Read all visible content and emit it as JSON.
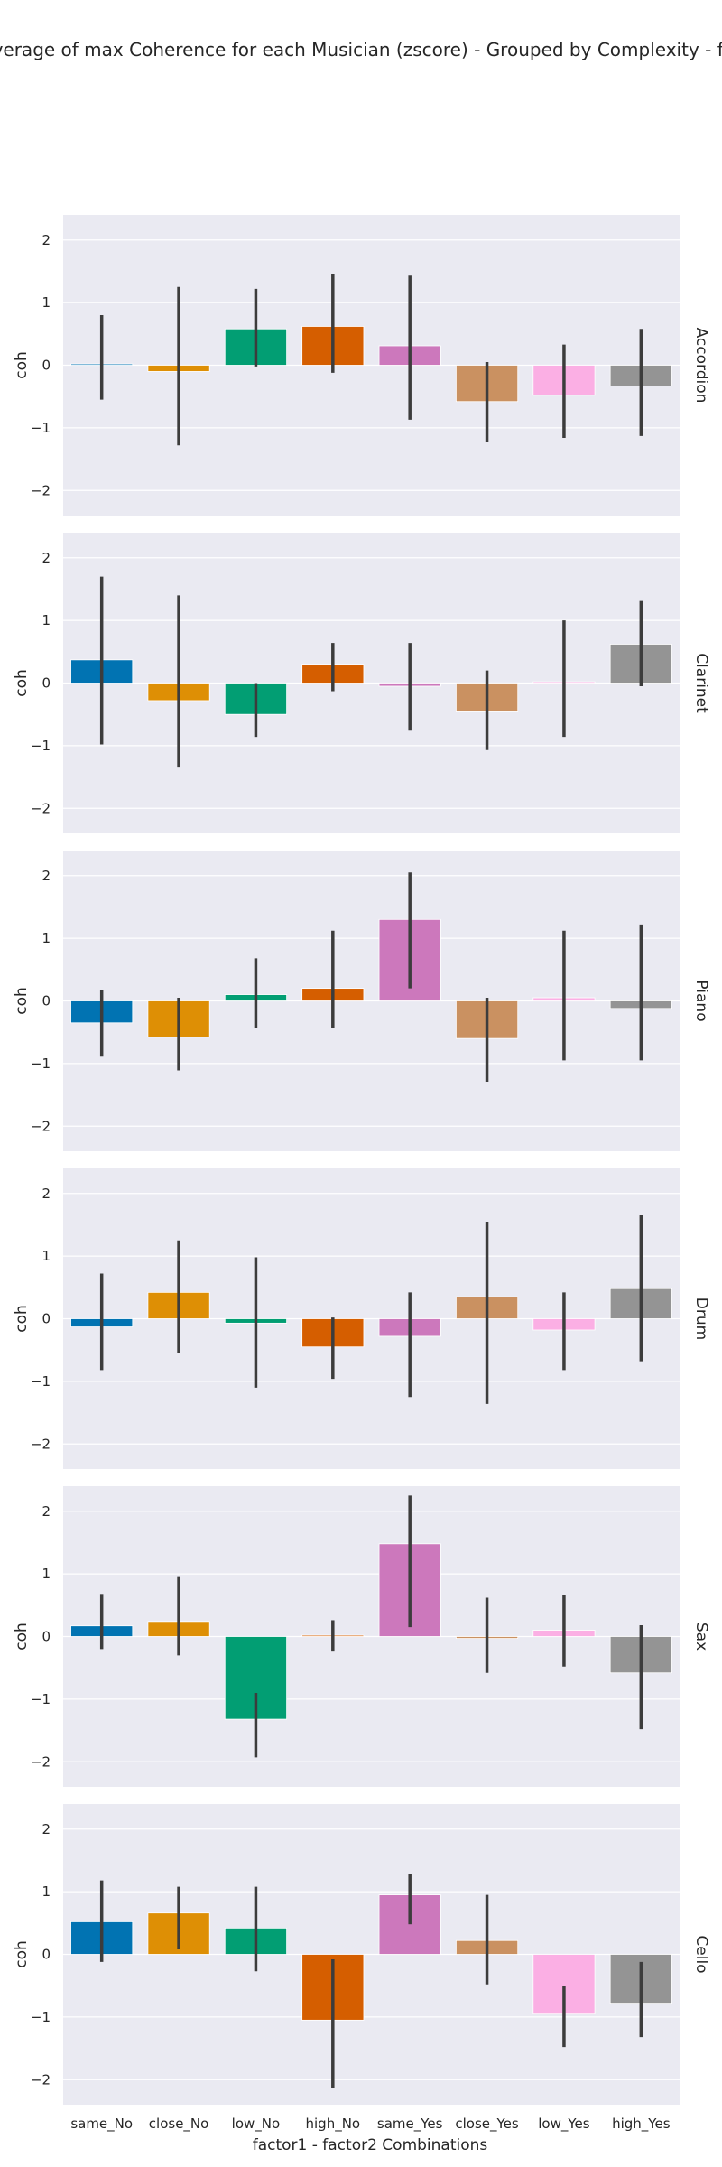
{
  "chart_data": {
    "type": "bar",
    "title": "o - Average of max Coherence for each Musician (zscore) - Grouped by Complexity - filtere",
    "xlabel": "factor1 - factor2 Combinations",
    "ylabel": "coh",
    "ylim": [
      -2.4,
      2.4
    ],
    "yticks": [
      -2,
      -1,
      0,
      1,
      2
    ],
    "grid": true,
    "categories": [
      "same_No",
      "close_No",
      "low_No",
      "high_No",
      "same_Yes",
      "close_Yes",
      "low_Yes",
      "high_Yes"
    ],
    "colors": [
      "#0173b2",
      "#de8f05",
      "#029e73",
      "#d55e00",
      "#cc78bc",
      "#ca9161",
      "#fbafe4",
      "#949494"
    ],
    "facets": [
      {
        "row_label": "Accordion",
        "values": [
          0.02,
          -0.1,
          0.58,
          0.62,
          0.31,
          -0.58,
          -0.48,
          -0.33
        ],
        "ci": [
          [
            -0.55,
            0.8
          ],
          [
            -1.28,
            1.25
          ],
          [
            -0.02,
            1.22
          ],
          [
            -0.12,
            1.45
          ],
          [
            -0.87,
            1.43
          ],
          [
            -1.22,
            0.05
          ],
          [
            -1.16,
            0.33
          ],
          [
            -1.13,
            0.58
          ]
        ]
      },
      {
        "row_label": "Clarinet",
        "values": [
          0.37,
          -0.28,
          -0.5,
          0.3,
          -0.05,
          -0.46,
          0.02,
          0.62
        ],
        "ci": [
          [
            -0.98,
            1.7
          ],
          [
            -1.35,
            1.4
          ],
          [
            -0.86,
            0.0
          ],
          [
            -0.13,
            0.64
          ],
          [
            -0.76,
            0.64
          ],
          [
            -1.07,
            0.2
          ],
          [
            -0.86,
            1.0
          ],
          [
            -0.05,
            1.31
          ]
        ]
      },
      {
        "row_label": "Piano",
        "values": [
          -0.35,
          -0.58,
          0.1,
          0.2,
          1.3,
          -0.6,
          0.05,
          -0.12
        ],
        "ci": [
          [
            -0.89,
            0.18
          ],
          [
            -1.11,
            0.05
          ],
          [
            -0.44,
            0.68
          ],
          [
            -0.44,
            1.12
          ],
          [
            0.2,
            2.05
          ],
          [
            -1.29,
            0.05
          ],
          [
            -0.95,
            1.12
          ],
          [
            -0.95,
            1.22
          ]
        ]
      },
      {
        "row_label": "Drum",
        "values": [
          -0.13,
          0.42,
          -0.07,
          -0.45,
          -0.28,
          0.35,
          -0.18,
          0.48
        ],
        "ci": [
          [
            -0.82,
            0.72
          ],
          [
            -0.55,
            1.25
          ],
          [
            -1.1,
            0.98
          ],
          [
            -0.96,
            0.02
          ],
          [
            -1.25,
            0.42
          ],
          [
            -1.36,
            1.55
          ],
          [
            -0.82,
            0.42
          ],
          [
            -0.68,
            1.65
          ]
        ]
      },
      {
        "row_label": "Sax",
        "values": [
          0.17,
          0.24,
          -1.32,
          0.02,
          1.48,
          -0.03,
          0.1,
          -0.58
        ],
        "ci": [
          [
            -0.2,
            0.68
          ],
          [
            -0.3,
            0.95
          ],
          [
            -1.93,
            -0.9
          ],
          [
            -0.24,
            0.26
          ],
          [
            0.15,
            2.25
          ],
          [
            -0.58,
            0.62
          ],
          [
            -0.48,
            0.66
          ],
          [
            -1.48,
            0.18
          ]
        ]
      },
      {
        "row_label": "Cello",
        "values": [
          0.52,
          0.66,
          0.42,
          -1.05,
          0.95,
          0.22,
          -0.94,
          -0.78
        ],
        "ci": [
          [
            -0.12,
            1.18
          ],
          [
            0.08,
            1.08
          ],
          [
            -0.27,
            1.08
          ],
          [
            -2.13,
            -0.08
          ],
          [
            0.48,
            1.28
          ],
          [
            -0.48,
            0.95
          ],
          [
            -1.48,
            -0.5
          ],
          [
            -1.32,
            -0.12
          ]
        ]
      }
    ]
  }
}
